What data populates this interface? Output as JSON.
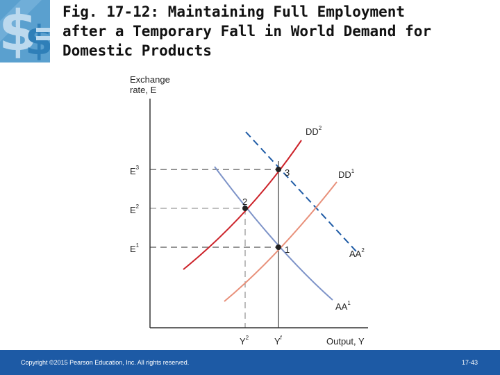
{
  "title": {
    "line1": "Fig. 17-12: Maintaining Full Employment",
    "line2": "after a Temporary Fall in World Demand for",
    "line3": "Domestic Products"
  },
  "logo": {
    "icon": "dollar-sign-icon",
    "colors": [
      "#5aa0cf",
      "#2f7fb8",
      "#bcd9ee"
    ]
  },
  "diagram": {
    "y_axis": {
      "line1": "Exchange",
      "line2": "rate, E"
    },
    "x_axis": {
      "label": "Output, Y"
    },
    "y_ticks": [
      {
        "base": "E",
        "sup": "3"
      },
      {
        "base": "E",
        "sup": "2"
      },
      {
        "base": "E",
        "sup": "1"
      }
    ],
    "x_ticks": [
      {
        "base": "Y",
        "sup": "2"
      },
      {
        "base": "Y",
        "sup": "f"
      }
    ],
    "curves": {
      "DD2": {
        "base": "DD",
        "sup": "2",
        "color": "#cc2229"
      },
      "DD1": {
        "base": "DD",
        "sup": "1",
        "color": "#e8907a"
      },
      "AA1": {
        "base": "AA",
        "sup": "1",
        "color": "#7d93c8"
      },
      "AA2": {
        "base": "AA",
        "sup": "2",
        "color": "#1d5aa5"
      }
    },
    "points": [
      "1",
      "2",
      "3"
    ]
  },
  "footer": {
    "copyright": "Copyright ©2015 Pearson Education, Inc. All rights reserved.",
    "page": "17-43",
    "color": "#1d5aa5"
  }
}
